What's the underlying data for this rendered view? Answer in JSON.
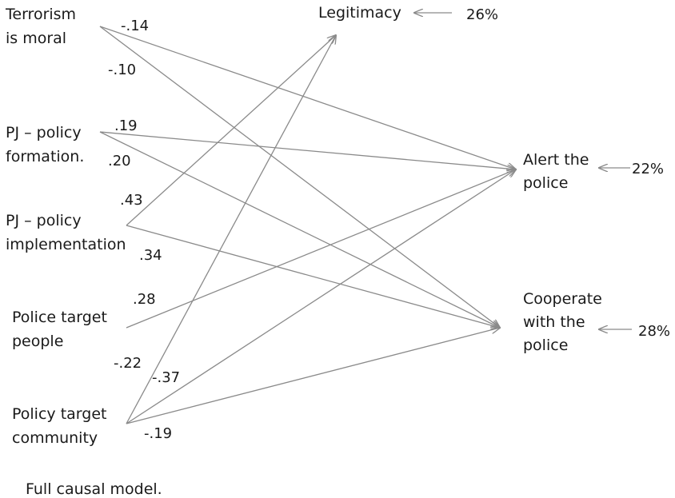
{
  "nodes": {
    "terrorism": [
      "Terrorism",
      "is moral"
    ],
    "pj_formation": [
      "PJ – policy",
      "formation."
    ],
    "pj_implementation": [
      "PJ – policy",
      "implementation"
    ],
    "police_target": [
      "Police target",
      "people"
    ],
    "policy_target": [
      "Policy target",
      "community"
    ],
    "legitimacy": [
      "Legitimacy"
    ],
    "alert": [
      "Alert the",
      "police"
    ],
    "cooperate": [
      "Cooperate",
      "with the",
      "police"
    ]
  },
  "explained_variance": {
    "legitimacy": "26%",
    "alert": "22%",
    "cooperate": "28%"
  },
  "coefficients": [
    {
      "id": "terrorism-alert",
      "value": "-.14"
    },
    {
      "id": "terrorism-cooperate",
      "value": "-.10"
    },
    {
      "id": "pjform-alert",
      "value": ".19"
    },
    {
      "id": "pjform-cooperate",
      "value": ".20"
    },
    {
      "id": "pjimpl-legitimacy",
      "value": ".43"
    },
    {
      "id": "pjimpl-cooperate",
      "value": ".34"
    },
    {
      "id": "policetarget-alert",
      "value": ".28"
    },
    {
      "id": "policytarget-legitimacy",
      "value": "-.22"
    },
    {
      "id": "policytarget-alert",
      "value": "-.37"
    },
    {
      "id": "policytarget-cooperate",
      "value": "-.19"
    }
  ],
  "caption": "Full causal model."
}
